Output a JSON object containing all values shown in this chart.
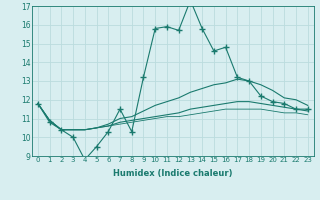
{
  "xlabel": "Humidex (Indice chaleur)",
  "x": [
    0,
    1,
    2,
    3,
    4,
    5,
    6,
    7,
    8,
    9,
    10,
    11,
    12,
    13,
    14,
    15,
    16,
    17,
    18,
    19,
    20,
    21,
    22,
    23
  ],
  "series1": [
    11.8,
    10.8,
    10.4,
    10.0,
    8.8,
    9.5,
    10.3,
    11.5,
    10.3,
    13.2,
    15.8,
    15.9,
    15.7,
    17.3,
    15.8,
    14.6,
    14.8,
    13.2,
    13.0,
    12.2,
    11.9,
    11.8,
    11.5,
    11.5
  ],
  "series2": [
    11.8,
    10.9,
    10.4,
    10.4,
    10.4,
    10.5,
    10.7,
    11.0,
    11.1,
    11.4,
    11.7,
    11.9,
    12.1,
    12.4,
    12.6,
    12.8,
    12.9,
    13.1,
    13.0,
    12.8,
    12.5,
    12.1,
    12.0,
    11.7
  ],
  "series3": [
    11.8,
    10.9,
    10.4,
    10.4,
    10.4,
    10.5,
    10.6,
    10.8,
    10.9,
    11.0,
    11.1,
    11.2,
    11.3,
    11.5,
    11.6,
    11.7,
    11.8,
    11.9,
    11.9,
    11.8,
    11.7,
    11.6,
    11.5,
    11.4
  ],
  "series4": [
    11.8,
    10.9,
    10.4,
    10.4,
    10.4,
    10.5,
    10.6,
    10.7,
    10.8,
    10.9,
    11.0,
    11.1,
    11.1,
    11.2,
    11.3,
    11.4,
    11.5,
    11.5,
    11.5,
    11.5,
    11.4,
    11.3,
    11.3,
    11.2
  ],
  "color": "#1a7a6e",
  "bg_color": "#d8eef0",
  "grid_color": "#bbdcde",
  "ylim": [
    9,
    17
  ],
  "yticks": [
    9,
    10,
    11,
    12,
    13,
    14,
    15,
    16,
    17
  ]
}
